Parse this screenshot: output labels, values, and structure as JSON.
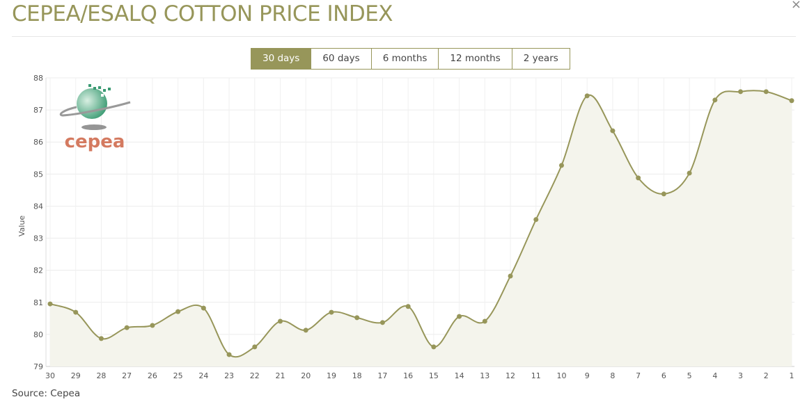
{
  "title": "CEPEA/ESALQ COTTON PRICE INDEX",
  "close_label": "×",
  "range_buttons": [
    {
      "label": "30 days",
      "active": true
    },
    {
      "label": "60 days",
      "active": false
    },
    {
      "label": "6 months",
      "active": false
    },
    {
      "label": "12 months",
      "active": false
    },
    {
      "label": "2 years",
      "active": false
    }
  ],
  "logo_text": "cepea",
  "source": "Source: Cepea",
  "colors": {
    "accent": "#97965a",
    "fill": "#f4f4ec",
    "grid": "#ececec"
  },
  "chart_data": {
    "type": "area",
    "title": "CEPEA/ESALQ COTTON PRICE INDEX",
    "xlabel": "",
    "ylabel": "Value",
    "ylim": [
      79,
      88
    ],
    "yticks": [
      "79",
      "80",
      "81",
      "82",
      "83",
      "84",
      "85",
      "86",
      "87",
      "88"
    ],
    "categories": [
      "30",
      "29",
      "28",
      "27",
      "26",
      "25",
      "24",
      "23",
      "22",
      "21",
      "20",
      "19",
      "18",
      "17",
      "16",
      "15",
      "14",
      "13",
      "12",
      "11",
      "10",
      "9",
      "8",
      "7",
      "6",
      "5",
      "4",
      "3",
      "2",
      "1"
    ],
    "values": [
      80.95,
      80.69,
      79.87,
      80.21,
      80.28,
      80.71,
      80.82,
      79.37,
      79.61,
      80.41,
      80.13,
      80.69,
      80.52,
      80.37,
      80.87,
      79.61,
      80.56,
      80.41,
      81.82,
      83.58,
      85.27,
      87.44,
      86.35,
      84.88,
      84.38,
      85.03,
      87.31,
      87.57,
      87.57,
      87.29
    ],
    "grid": true,
    "legend": "none"
  }
}
